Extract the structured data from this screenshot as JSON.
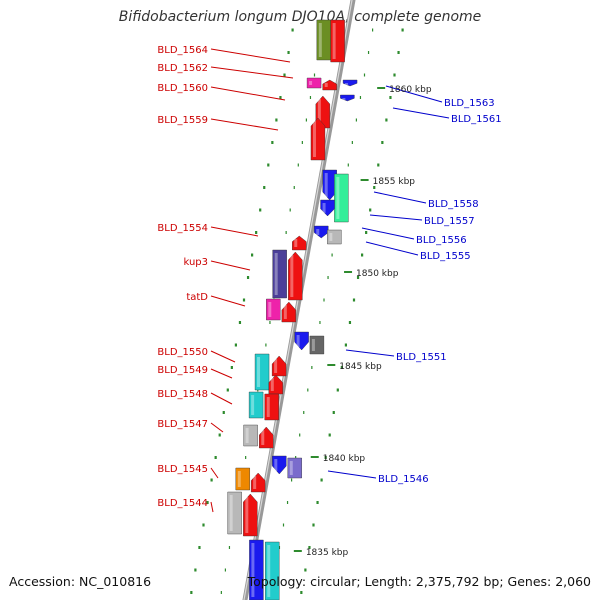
{
  "title": "Bifidobacterium longum DJO10A, complete genome",
  "accession_text": "Accession: NC_010816",
  "topology_text": "Topology: circular; Length: 2,375,792 bp; Genes: 2,060",
  "colors": {
    "backbone": "#999999",
    "left_label": "#cc0000",
    "right_label": "#0000cc",
    "dots": "#2e8b2e"
  },
  "ticks": [
    "1860 kbp",
    "1855 kbp",
    "1850 kbp",
    "1845 kbp",
    "1840 kbp",
    "1835 kbp"
  ],
  "left_labels": [
    "BLD_1564",
    "BLD_1562",
    "BLD_1560",
    "BLD_1559",
    "BLD_1554",
    "kup3",
    "tatD",
    "BLD_1550",
    "BLD_1549",
    "BLD_1548",
    "BLD_1547",
    "BLD_1545",
    "BLD_1544"
  ],
  "right_labels": [
    "BLD_1563",
    "BLD_1561",
    "BLD_1558",
    "BLD_1557",
    "BLD_1556",
    "BLD_1555",
    "BLD_1551",
    "BLD_1546"
  ],
  "gene_colors": {
    "red": "#ee1111",
    "olive": "#6b8e23",
    "magenta": "#ee22aa",
    "blue": "#1a1aee",
    "mint": "#33ee99",
    "grey": "#b8b8b8",
    "darkgrey": "#666666",
    "indigo": "#4b3f99",
    "cyan": "#22cccc",
    "orange": "#ee8800",
    "slate": "#7a6ccc"
  }
}
